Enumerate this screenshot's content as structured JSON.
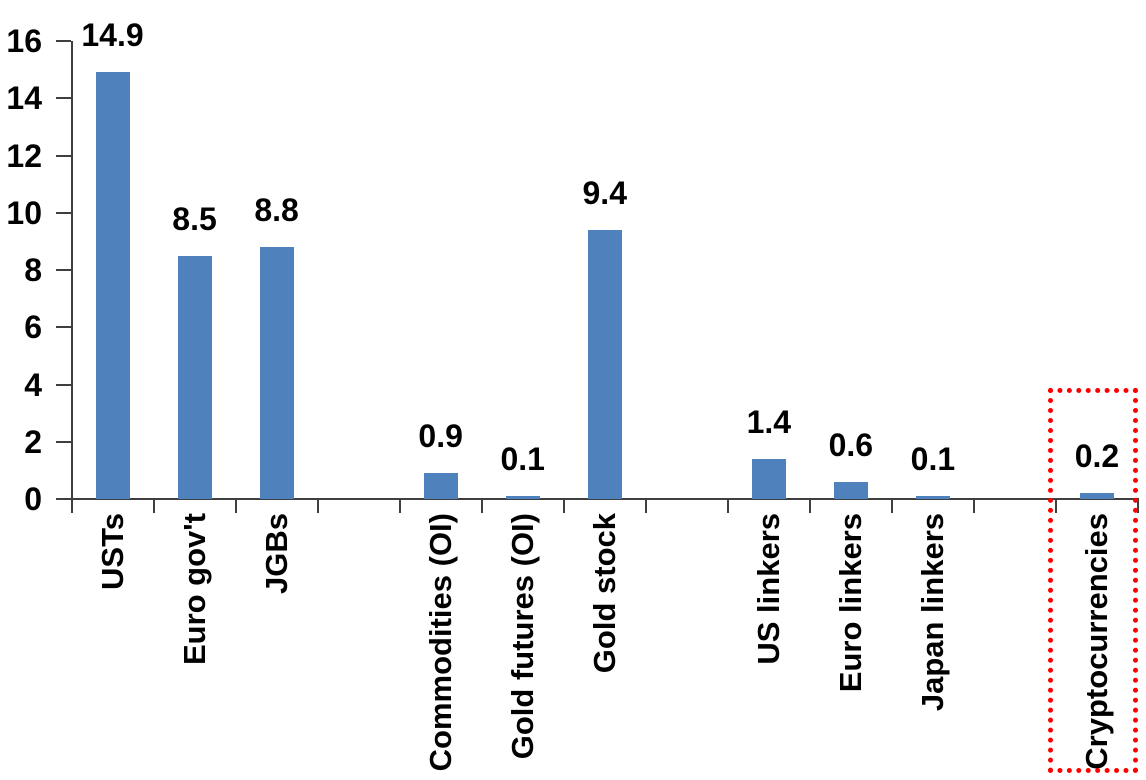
{
  "chart_data": {
    "type": "bar",
    "title": "",
    "xlabel": "",
    "ylabel": "",
    "categories": [
      "USTs",
      "Euro gov't",
      "JGBs",
      "Commodities (OI)",
      "Gold futures (OI)",
      "Gold stock",
      "US linkers",
      "Euro linkers",
      "Japan linkers",
      "Cryptocurrencies"
    ],
    "values": [
      14.9,
      8.5,
      8.8,
      0.9,
      0.1,
      9.4,
      1.4,
      0.6,
      0.1,
      0.2
    ],
    "data_labels": [
      "14.9",
      "8.5",
      "8.8",
      "0.9",
      "0.1",
      "9.4",
      "1.4",
      "0.6",
      "0.1",
      "0.2"
    ],
    "slots": [
      0,
      1,
      2,
      4,
      5,
      6,
      8,
      9,
      10,
      12
    ],
    "total_slots": 13,
    "ylim": [
      0,
      16
    ],
    "yticks": [
      0,
      2,
      4,
      6,
      8,
      10,
      12,
      14,
      16
    ],
    "grid": false,
    "legend": false,
    "category_label_rotation": "90deg bottom-to-top",
    "colors": {
      "bar": "#4f81bd",
      "axis": "#3f3f3f",
      "text": "#000000",
      "highlight_box": "#ff0000"
    },
    "highlight": {
      "category": "Cryptocurrencies",
      "style": "dotted-box",
      "color": "#ff0000"
    }
  }
}
